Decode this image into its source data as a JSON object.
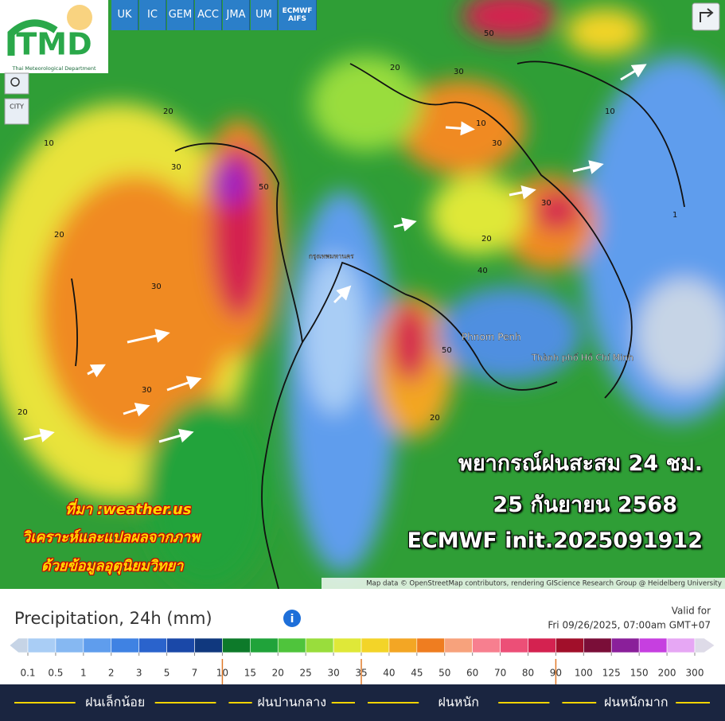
{
  "header": {
    "logo": "TMD",
    "logo_sub": "Thai Meteorological Department",
    "models": [
      "UK",
      "IC",
      "GEM",
      "ACC",
      "JMA",
      "UM",
      "ECMWF AIFS"
    ],
    "city": "CITY"
  },
  "map": {
    "places": [
      "กรุงเทพมหานคร",
      "Phnom Penh",
      "Thành phố Hồ Chí Minh"
    ],
    "contours": [
      "20",
      "30",
      "10",
      "20",
      "30",
      "50",
      "20",
      "30",
      "50",
      "30",
      "20",
      "10",
      "30",
      "40",
      "20",
      "50",
      "30",
      "20",
      "10",
      "1"
    ]
  },
  "overlay": {
    "forecast_lines": [
      "พยากรณ์ฝนสะสม 24 ชม.",
      "25 กันยายน 2568",
      "ECMWF init.2025091912"
    ],
    "source_lines": [
      "ที่มา :weather.us",
      "วิเคราะห์และแปลผลจากภาพ",
      "ด้วยข้อมูลอุตุนิยมวิทยา"
    ]
  },
  "attribution": "Map data © OpenStreetMap contributors, rendering GIScience Research Group @ Heidelberg University",
  "legend": {
    "title": "Precipitation, 24h (mm)",
    "valid_label": "Valid for",
    "valid_time": "Fri 09/26/2025, 07:00am GMT+07",
    "ticks": [
      "0.1",
      "0.5",
      "1",
      "2",
      "3",
      "5",
      "7",
      "10",
      "15",
      "20",
      "25",
      "30",
      "35",
      "40",
      "45",
      "50",
      "60",
      "70",
      "80",
      "90",
      "100",
      "125",
      "150",
      "200",
      "300"
    ],
    "colors": [
      "#c6d4e6",
      "#a9cdf5",
      "#86b8f2",
      "#5f9ded",
      "#3f82e3",
      "#2a63cc",
      "#1a48a8",
      "#10387e",
      "#0d7a2a",
      "#20a33a",
      "#4fc43c",
      "#99dd3c",
      "#dfe838",
      "#f3d428",
      "#f3a624",
      "#ef7d20",
      "#f7a27c",
      "#f77f8f",
      "#ec4f77",
      "#d42250",
      "#a10f2a",
      "#7a0e38",
      "#8a1f9a",
      "#c63fe0",
      "#e6a7f4",
      "#dedbe8"
    ]
  },
  "categories": [
    "ฝนเล็กน้อย",
    "ฝนปานกลาง",
    "ฝนหนัก",
    "ฝนหนักมาก"
  ]
}
